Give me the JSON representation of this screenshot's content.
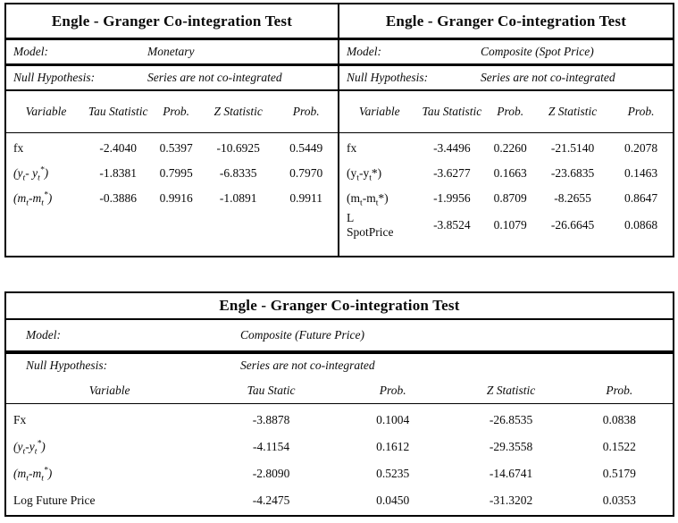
{
  "colors": {
    "border": "#000000",
    "text": "#0a0a0a",
    "background": "#ffffff"
  },
  "monetary": {
    "title": "Engle - Granger Co-integration Test",
    "model_label": "Model:",
    "model_value": "Monetary",
    "null_label": "Null Hypothesis:",
    "null_value": "Series are not co-integrated",
    "columns": {
      "variable": "Variable",
      "tau": "Tau Statistic",
      "prob1": "Prob.",
      "z": "Z Statistic",
      "prob2": "Prob."
    },
    "rows": [
      {
        "variable": {
          "a": "fx"
        },
        "tau": "-2.4040",
        "prob1": "0.5397",
        "z": "-10.6925",
        "prob2": "0.5449"
      },
      {
        "variable": {
          "a": "(y",
          "b": "t",
          "c": "- y",
          "d": "t",
          "e": "*",
          "f": ")"
        },
        "tau": "-1.8381",
        "prob1": "0.7995",
        "z": "-6.8335",
        "prob2": "0.7970"
      },
      {
        "variable": {
          "a": "(m",
          "b": "t",
          "c": "-m",
          "d": "t",
          "e": "*",
          "f": ")"
        },
        "tau": "-0.3886",
        "prob1": "0.9916",
        "z": "-1.0891",
        "prob2": "0.9911"
      }
    ]
  },
  "spot": {
    "title": "Engle - Granger Co-integration Test",
    "model_label": "Model:",
    "model_value": "Composite (Spot Price)",
    "null_label": "Null Hypothesis:",
    "null_value": "Series are not co-integrated",
    "columns": {
      "variable": "Variable",
      "tau": "Tau Statistic",
      "prob1": "Prob.",
      "z": "Z Statistic",
      "prob2": "Prob."
    },
    "rows": [
      {
        "variable": {
          "a": "fx"
        },
        "tau": "-3.4496",
        "prob1": "0.2260",
        "z": "-21.5140",
        "prob2": "0.2078"
      },
      {
        "variable": {
          "a": "(y",
          "b": "t",
          "c": "-y",
          "d": "t",
          "f": "*)"
        },
        "tau": "-3.6277",
        "prob1": "0.1663",
        "z": "-23.6835",
        "prob2": "0.1463"
      },
      {
        "variable": {
          "a": "(m",
          "b": "t",
          "c": "-m",
          "d": "t",
          "f": "*)"
        },
        "tau": "-1.9956",
        "prob1": "0.8709",
        "z": "-8.2655",
        "prob2": "0.8647"
      },
      {
        "variable": {
          "a": "L\nSpotPrice"
        },
        "tau": "-3.8524",
        "prob1": "0.1079",
        "z": "-26.6645",
        "prob2": "0.0868"
      }
    ]
  },
  "future": {
    "title": "Engle - Granger Co-integration Test",
    "model_label": "Model:",
    "model_value": "Composite (Future Price)",
    "null_label": "Null Hypothesis:",
    "null_value": "Series are not co-integrated",
    "columns": {
      "variable": "Variable",
      "tau": "Tau Static",
      "prob1": "Prob.",
      "z": "Z Statistic",
      "prob2": "Prob."
    },
    "rows": [
      {
        "variable": {
          "a": "Fx"
        },
        "tau": "-3.8878",
        "prob1": "0.1004",
        "z": "-26.8535",
        "prob2": "0.0838"
      },
      {
        "variable": {
          "a": "(y",
          "b": "t",
          "c": "-y",
          "d": "t",
          "e": "*",
          "f": ")"
        },
        "tau": "-4.1154",
        "prob1": "0.1612",
        "z": "-29.3558",
        "prob2": "0.1522"
      },
      {
        "variable": {
          "a": "(m",
          "b": "t",
          "c": "-m",
          "d": "t",
          "e": "*",
          "f": ")"
        },
        "tau": "-2.8090",
        "prob1": "0.5235",
        "z": "-14.6741",
        "prob2": "0.5179"
      },
      {
        "variable": {
          "a": "Log Future Price"
        },
        "tau": "-4.2475",
        "prob1": "0.0450",
        "z": "-31.3202",
        "prob2": "0.0353"
      }
    ]
  }
}
